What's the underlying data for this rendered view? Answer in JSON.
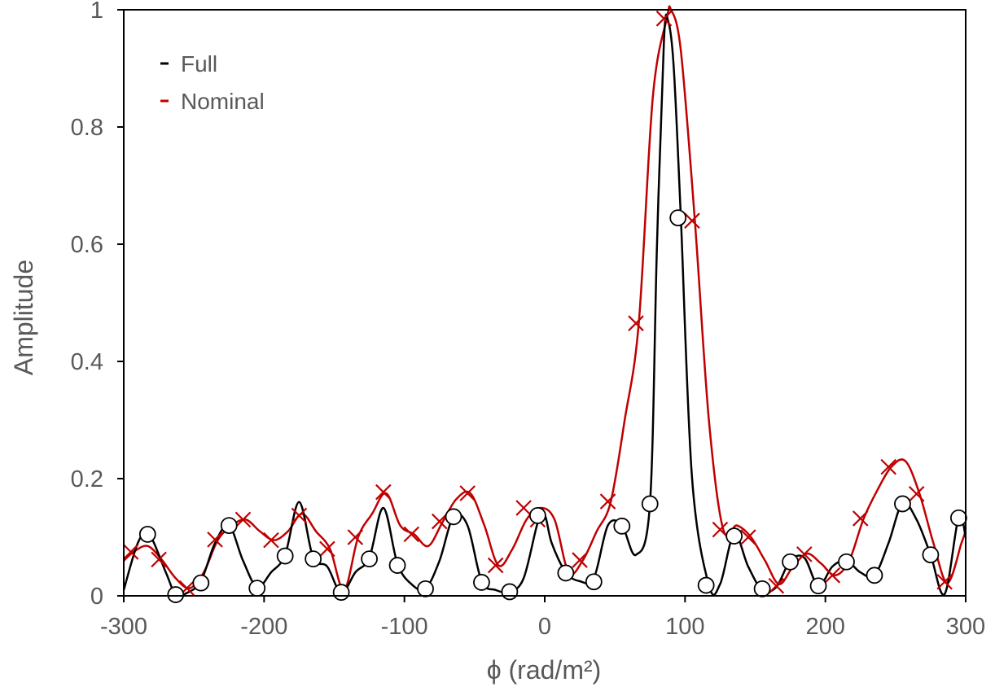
{
  "chart_data": {
    "type": "line",
    "xlabel": "ϕ (rad/m²)",
    "ylabel": "Amplitude",
    "xlim": [
      -300,
      300
    ],
    "ylim": [
      0,
      1
    ],
    "x_ticks": [
      "-300",
      "-200",
      "-100",
      "0",
      "100",
      "200",
      "300"
    ],
    "y_ticks": [
      "0",
      "0.2",
      "0.4",
      "0.6",
      "0.8",
      "1"
    ],
    "grid": false,
    "legend_position": "top-left",
    "series": [
      {
        "name": "Full",
        "color": "#000000",
        "marker": "circle",
        "x": [
          -300,
          -290,
          -282,
          -270,
          -263,
          -255,
          -245,
          -235,
          -225,
          -215,
          -205,
          -195,
          -185,
          -175,
          -165,
          -155,
          -145,
          -135,
          -125,
          -115,
          -105,
          -95,
          -85,
          -75,
          -65,
          -55,
          -45,
          -35,
          -25,
          -15,
          -5,
          0,
          5,
          15,
          25,
          35,
          45,
          55,
          65,
          75,
          80,
          85,
          88,
          92,
          97,
          105,
          117,
          125,
          135,
          145,
          155,
          165,
          175,
          185,
          195,
          205,
          215,
          225,
          235,
          245,
          255,
          265,
          275,
          285,
          295,
          300
        ],
        "y": [
          0.01,
          0.09,
          0.105,
          0.04,
          0.002,
          0.005,
          0.025,
          0.09,
          0.12,
          0.06,
          0.015,
          0.04,
          0.07,
          0.16,
          0.065,
          0.05,
          0.005,
          0.04,
          0.065,
          0.15,
          0.055,
          0.02,
          0.012,
          0.06,
          0.135,
          0.12,
          0.025,
          0.01,
          0.007,
          0.03,
          0.125,
          0.138,
          0.09,
          0.04,
          0.025,
          0.03,
          0.12,
          0.12,
          0.07,
          0.158,
          0.6,
          0.95,
          0.98,
          0.9,
          0.645,
          0.2,
          0.018,
          0.02,
          0.105,
          0.05,
          0.01,
          0.015,
          0.06,
          0.065,
          0.017,
          0.05,
          0.06,
          0.04,
          0.035,
          0.09,
          0.158,
          0.13,
          0.07,
          0.003,
          0.135,
          0.1
        ],
        "marker_x": [
          -283,
          -263,
          -245,
          -225,
          -205,
          -185,
          -165,
          -145,
          -125,
          -105,
          -85,
          -65,
          -45,
          -25,
          -5,
          15,
          35,
          55,
          75,
          95,
          115,
          135,
          155,
          175,
          195,
          215,
          235,
          255,
          275,
          295
        ],
        "marker_y": [
          0.105,
          0.002,
          0.022,
          0.12,
          0.013,
          0.068,
          0.063,
          0.006,
          0.063,
          0.052,
          0.012,
          0.135,
          0.023,
          0.007,
          0.137,
          0.039,
          0.024,
          0.119,
          0.157,
          0.645,
          0.018,
          0.102,
          0.012,
          0.058,
          0.017,
          0.058,
          0.035,
          0.157,
          0.07,
          0.133
        ]
      },
      {
        "name": "Nominal",
        "color": "#c00000",
        "marker": "x",
        "x": [
          -300,
          -293,
          -283,
          -273,
          -263,
          -253,
          -243,
          -233,
          -223,
          -213,
          -203,
          -193,
          -183,
          -173,
          -163,
          -153,
          -143,
          -133,
          -123,
          -113,
          -103,
          -93,
          -83,
          -73,
          -63,
          -53,
          -43,
          -33,
          -23,
          -13,
          -3,
          7,
          17,
          27,
          37,
          47,
          57,
          67,
          77,
          87,
          90,
          97,
          107,
          117,
          127,
          137,
          147,
          157,
          167,
          177,
          187,
          197,
          207,
          217,
          227,
          237,
          247,
          257,
          267,
          277,
          287,
          297,
          300
        ],
        "y": [
          0.06,
          0.075,
          0.085,
          0.062,
          0.03,
          0.013,
          0.04,
          0.095,
          0.12,
          0.13,
          0.11,
          0.095,
          0.11,
          0.14,
          0.11,
          0.08,
          0.01,
          0.1,
          0.14,
          0.175,
          0.12,
          0.105,
          0.085,
          0.125,
          0.165,
          0.175,
          0.12,
          0.052,
          0.08,
          0.13,
          0.15,
          0.13,
          0.04,
          0.06,
          0.11,
          0.16,
          0.3,
          0.465,
          0.85,
          0.985,
          1.0,
          0.93,
          0.64,
          0.3,
          0.115,
          0.12,
          0.1,
          0.06,
          0.02,
          0.05,
          0.072,
          0.055,
          0.035,
          0.06,
          0.13,
          0.18,
          0.22,
          0.23,
          0.175,
          0.09,
          0.022,
          0.09,
          0.11
        ],
        "marker_x": [
          -295,
          -275,
          -255,
          -235,
          -215,
          -195,
          -175,
          -155,
          -135,
          -115,
          -95,
          -75,
          -55,
          -35,
          -15,
          -5,
          25,
          45,
          65,
          85,
          105,
          125,
          145,
          165,
          185,
          205,
          225,
          245,
          265,
          285
        ],
        "marker_y": [
          0.075,
          0.062,
          0.013,
          0.096,
          0.13,
          0.095,
          0.137,
          0.08,
          0.1,
          0.177,
          0.105,
          0.127,
          0.175,
          0.052,
          0.15,
          0.13,
          0.061,
          0.161,
          0.465,
          0.985,
          0.64,
          0.113,
          0.1,
          0.017,
          0.071,
          0.035,
          0.132,
          0.22,
          0.174,
          0.024
        ]
      }
    ]
  }
}
